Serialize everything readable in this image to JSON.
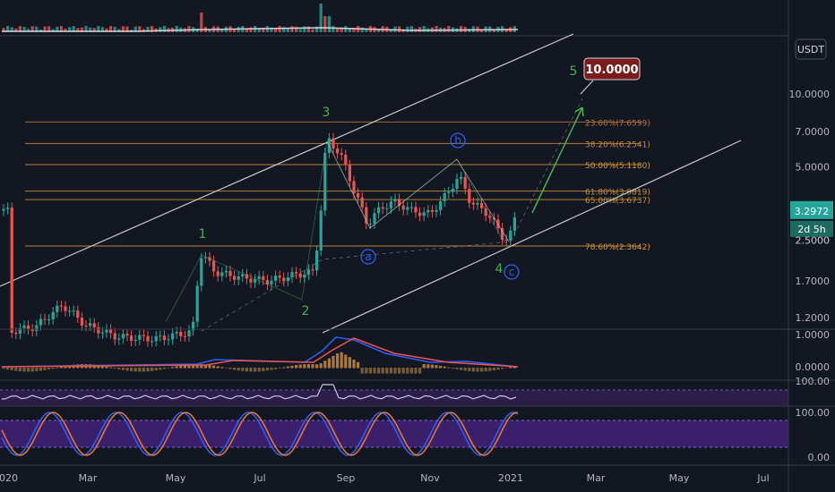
{
  "chart_data": {
    "type": "candlestick",
    "scale": "log",
    "currency_badge": "USDT",
    "price_axis_ticks": [
      "10.0000",
      "7.0000",
      "5.0000",
      "3.2972",
      "2.5000",
      "1.7000",
      "1.2000"
    ],
    "price_ticks": [
      10.0,
      7.0,
      5.0,
      2.5,
      1.7,
      1.2
    ],
    "x_axis_ticks": [
      "2020",
      "Mar",
      "May",
      "Jul",
      "Sep",
      "Nov",
      "2021",
      "Mar",
      "May",
      "Jul"
    ],
    "current_price": {
      "label": "3.2972",
      "value": 3.2972,
      "countdown": "2d 5h"
    },
    "target_label": {
      "label": "10.0000",
      "value": 10.0
    },
    "fib_levels": [
      {
        "label": "23.60%(7.6599)",
        "value": 7.6599,
        "color": "#b8773a"
      },
      {
        "label": "38.20%(6.2541)",
        "value": 6.2541,
        "color": "#c98a3f"
      },
      {
        "label": "50.00%(5.1180)",
        "value": 5.118,
        "color": "#d89a3c"
      },
      {
        "label": "61.80%(3.9819)",
        "value": 3.9819,
        "color": "#c7903a"
      },
      {
        "label": "65.00%(3.6737)",
        "value": 3.6737,
        "color": "#c7903a"
      },
      {
        "label": "78.60%(2.3642)",
        "value": 2.3642,
        "color": "#d8963a"
      }
    ],
    "wave_labels": [
      {
        "text": "1",
        "color": "#4caf50"
      },
      {
        "text": "2",
        "color": "#4caf50"
      },
      {
        "text": "3",
        "color": "#4caf50"
      },
      {
        "text": "4",
        "color": "#4caf50"
      },
      {
        "text": "5",
        "color": "#4caf50"
      },
      {
        "text": "a",
        "color": "#2962ff"
      },
      {
        "text": "b",
        "color": "#2962ff"
      },
      {
        "text": "c",
        "color": "#2962ff"
      }
    ],
    "macd_axis_ticks": [
      "1.0000",
      "0.0000"
    ],
    "rsi_axis_ticks": [
      "100.00"
    ],
    "stoch_axis_ticks": [
      "100.00",
      "0.00"
    ],
    "colors": {
      "up": "#26a69a",
      "down": "#ef5350",
      "channel": "#c9c9c9",
      "background": "#131722",
      "grid": "#2a2e39",
      "arrow": "#4caf50",
      "target_bg": "#7b1c1c"
    }
  }
}
